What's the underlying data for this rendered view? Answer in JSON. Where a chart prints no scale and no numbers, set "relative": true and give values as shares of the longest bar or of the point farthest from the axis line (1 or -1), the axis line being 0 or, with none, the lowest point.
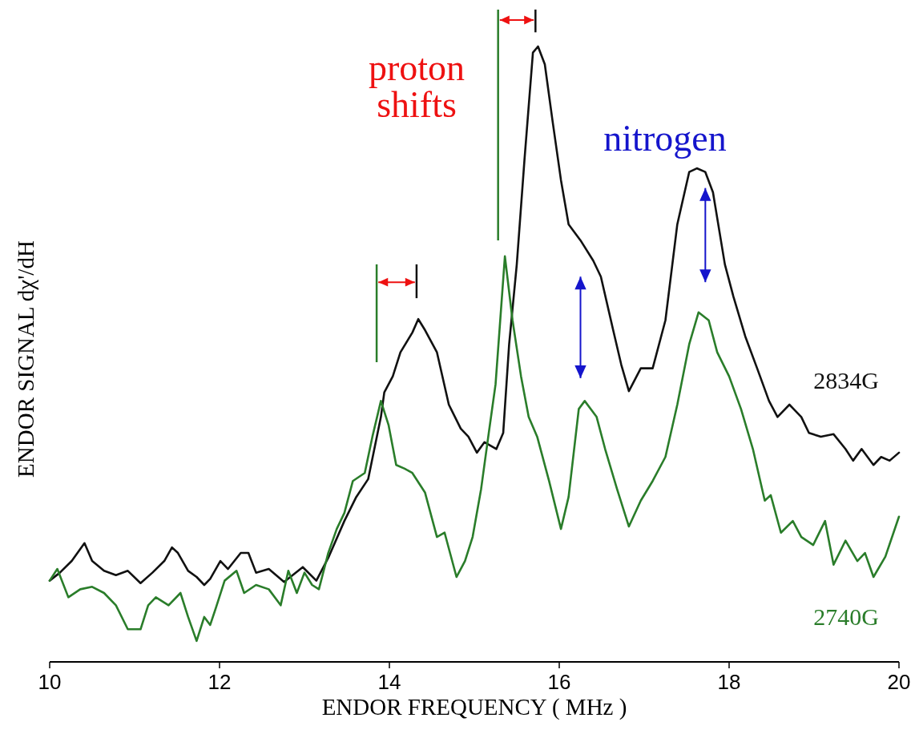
{
  "chart_data": {
    "type": "line",
    "relative": true,
    "xlabel": "ENDOR FREQUENCY ( MHz )",
    "ylabel": "ENDOR SIGNAL dχ'/dH",
    "xlim": [
      10,
      20
    ],
    "xticks": [
      10,
      12,
      14,
      16,
      18,
      20
    ],
    "grid": false,
    "marker": "none",
    "line_style": "solid",
    "annotations": [
      "proton shifts",
      "nitrogen"
    ],
    "series": [
      {
        "name": "2834G",
        "color": "#111111",
        "x": [
          10.0,
          10.12,
          10.26,
          10.41,
          10.5,
          10.64,
          10.78,
          10.92,
          11.07,
          11.21,
          11.35,
          11.44,
          11.51,
          11.63,
          11.73,
          11.82,
          11.89,
          12.01,
          12.1,
          12.25,
          12.34,
          12.43,
          12.58,
          12.76,
          12.98,
          13.14,
          13.28,
          13.47,
          13.61,
          13.75,
          13.9,
          13.94,
          14.04,
          14.13,
          14.27,
          14.34,
          14.42,
          14.56,
          14.7,
          14.84,
          14.93,
          15.03,
          15.12,
          15.26,
          15.34,
          15.41,
          15.5,
          15.59,
          15.69,
          15.75,
          15.83,
          15.92,
          16.02,
          16.11,
          16.25,
          16.4,
          16.49,
          16.63,
          16.73,
          16.82,
          16.96,
          17.1,
          17.25,
          17.39,
          17.53,
          17.62,
          17.72,
          17.81,
          17.95,
          18.05,
          18.19,
          18.33,
          18.47,
          18.57,
          18.71,
          18.85,
          18.94,
          19.08,
          19.23,
          19.37,
          19.46,
          19.56,
          19.7,
          19.79,
          19.89,
          20.0
        ],
        "values": [
          0.132,
          0.145,
          0.164,
          0.193,
          0.164,
          0.148,
          0.141,
          0.148,
          0.128,
          0.145,
          0.164,
          0.186,
          0.177,
          0.148,
          0.138,
          0.125,
          0.135,
          0.164,
          0.151,
          0.177,
          0.177,
          0.145,
          0.151,
          0.13,
          0.154,
          0.132,
          0.169,
          0.229,
          0.268,
          0.297,
          0.398,
          0.438,
          0.464,
          0.503,
          0.535,
          0.557,
          0.539,
          0.503,
          0.418,
          0.379,
          0.366,
          0.34,
          0.357,
          0.346,
          0.372,
          0.516,
          0.646,
          0.815,
          0.99,
          1.0,
          0.971,
          0.88,
          0.783,
          0.711,
          0.685,
          0.652,
          0.626,
          0.542,
          0.483,
          0.44,
          0.477,
          0.477,
          0.555,
          0.711,
          0.796,
          0.802,
          0.796,
          0.763,
          0.646,
          0.594,
          0.529,
          0.477,
          0.424,
          0.398,
          0.418,
          0.398,
          0.372,
          0.366,
          0.37,
          0.346,
          0.327,
          0.346,
          0.32,
          0.333,
          0.327,
          0.34
        ]
      },
      {
        "name": "2740G",
        "color": "#2a7d2a",
        "x": [
          10.0,
          10.09,
          10.22,
          10.36,
          10.5,
          10.64,
          10.78,
          10.92,
          11.07,
          11.16,
          11.25,
          11.4,
          11.54,
          11.63,
          11.73,
          11.82,
          11.89,
          11.96,
          12.06,
          12.2,
          12.29,
          12.43,
          12.58,
          12.72,
          12.81,
          12.91,
          13.0,
          13.09,
          13.17,
          13.28,
          13.38,
          13.47,
          13.57,
          13.71,
          13.8,
          13.9,
          13.99,
          14.08,
          14.18,
          14.27,
          14.42,
          14.56,
          14.65,
          14.79,
          14.89,
          14.98,
          15.08,
          15.17,
          15.25,
          15.36,
          15.45,
          15.55,
          15.64,
          15.74,
          15.88,
          16.02,
          16.11,
          16.23,
          16.3,
          16.44,
          16.54,
          16.68,
          16.82,
          16.96,
          17.1,
          17.25,
          17.39,
          17.53,
          17.64,
          17.76,
          17.86,
          18.0,
          18.14,
          18.28,
          18.42,
          18.49,
          18.61,
          18.75,
          18.85,
          18.99,
          19.13,
          19.23,
          19.37,
          19.51,
          19.6,
          19.7,
          19.84,
          20.0
        ],
        "values": [
          0.132,
          0.151,
          0.105,
          0.118,
          0.122,
          0.112,
          0.092,
          0.053,
          0.053,
          0.092,
          0.105,
          0.092,
          0.112,
          0.073,
          0.034,
          0.073,
          0.06,
          0.089,
          0.132,
          0.148,
          0.112,
          0.125,
          0.118,
          0.092,
          0.148,
          0.112,
          0.145,
          0.125,
          0.118,
          0.177,
          0.216,
          0.242,
          0.294,
          0.307,
          0.366,
          0.424,
          0.385,
          0.32,
          0.314,
          0.307,
          0.275,
          0.203,
          0.21,
          0.138,
          0.164,
          0.203,
          0.281,
          0.372,
          0.451,
          0.659,
          0.555,
          0.464,
          0.398,
          0.366,
          0.294,
          0.216,
          0.268,
          0.411,
          0.424,
          0.398,
          0.346,
          0.281,
          0.22,
          0.262,
          0.294,
          0.333,
          0.418,
          0.516,
          0.568,
          0.555,
          0.503,
          0.464,
          0.411,
          0.346,
          0.262,
          0.271,
          0.21,
          0.229,
          0.203,
          0.19,
          0.229,
          0.158,
          0.197,
          0.164,
          0.177,
          0.138,
          0.171,
          0.236
        ]
      }
    ]
  }
}
